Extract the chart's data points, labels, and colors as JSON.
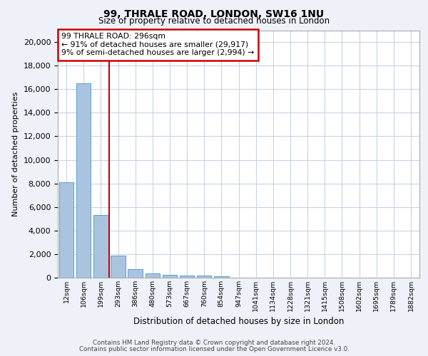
{
  "title_line1": "99, THRALE ROAD, LONDON, SW16 1NU",
  "title_line2": "Size of property relative to detached houses in London",
  "xlabel": "Distribution of detached houses by size in London",
  "ylabel": "Number of detached properties",
  "categories": [
    "12sqm",
    "106sqm",
    "199sqm",
    "293sqm",
    "386sqm",
    "480sqm",
    "573sqm",
    "667sqm",
    "760sqm",
    "854sqm",
    "947sqm",
    "1041sqm",
    "1134sqm",
    "1228sqm",
    "1321sqm",
    "1415sqm",
    "1508sqm",
    "1602sqm",
    "1695sqm",
    "1789sqm",
    "1882sqm"
  ],
  "values": [
    8100,
    16500,
    5300,
    1850,
    700,
    350,
    270,
    210,
    170,
    130,
    0,
    0,
    0,
    0,
    0,
    0,
    0,
    0,
    0,
    0,
    0
  ],
  "bar_color": "#aac4e0",
  "bar_edge_color": "#5a9ec9",
  "vline_color": "#cc0000",
  "annotation_text": "99 THRALE ROAD: 296sqm\n← 91% of detached houses are smaller (29,917)\n9% of semi-detached houses are larger (2,994) →",
  "annotation_box_color": "#cc0000",
  "ylim": [
    0,
    21000
  ],
  "yticks": [
    0,
    2000,
    4000,
    6000,
    8000,
    10000,
    12000,
    14000,
    16000,
    18000,
    20000
  ],
  "footer_line1": "Contains HM Land Registry data © Crown copyright and database right 2024.",
  "footer_line2": "Contains public sector information licensed under the Open Government Licence v3.0.",
  "bg_color": "#eef2f8",
  "plot_bg_color": "#ffffff",
  "grid_color": "#c8d4e8"
}
